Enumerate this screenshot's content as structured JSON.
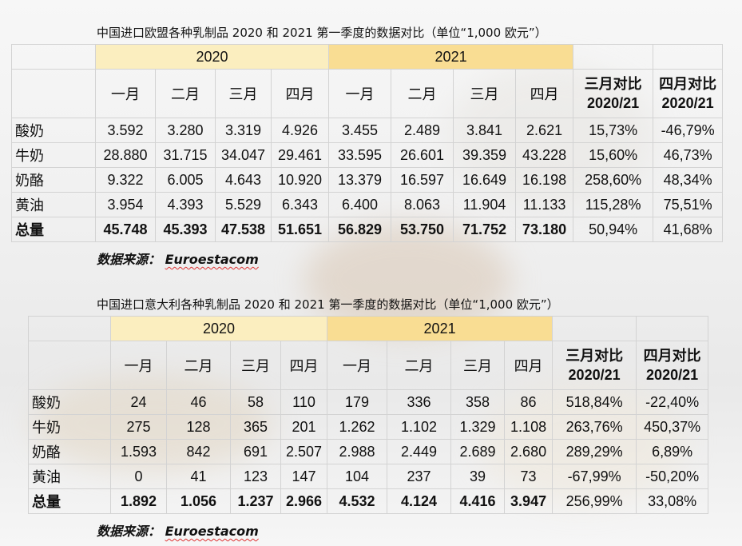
{
  "tables": [
    {
      "title": "中国进口欧盟各种乳制品 2020 和 2021 第一季度的数据对比（单位“1,000 欧元”）",
      "year_a": "2020",
      "year_b": "2021",
      "months_a": [
        "一月",
        "二月",
        "三月",
        "四月"
      ],
      "months_b": [
        "一月",
        "二月",
        "三月",
        "四月"
      ],
      "cmp1": [
        "三月对比",
        "2020/21"
      ],
      "cmp2": [
        "四月对比",
        "2020/21"
      ],
      "rows": [
        {
          "label": "酸奶",
          "cells": [
            "3.592",
            "3.280",
            "3.319",
            "4.926",
            "3.455",
            "2.489",
            "3.841",
            "2.621",
            "15,73%",
            "-46,79%"
          ]
        },
        {
          "label": "牛奶",
          "cells": [
            "28.880",
            "31.715",
            "34.047",
            "29.461",
            "33.595",
            "26.601",
            "39.359",
            "43.228",
            "15,60%",
            "46,73%"
          ]
        },
        {
          "label": "奶酪",
          "cells": [
            "9.322",
            "6.005",
            "4.643",
            "10.920",
            "13.379",
            "16.597",
            "16.649",
            "16.198",
            "258,60%",
            "48,34%"
          ]
        },
        {
          "label": "黄油",
          "cells": [
            "3.954",
            "4.393",
            "5.529",
            "6.343",
            "6.400",
            "8.063",
            "11.904",
            "11.133",
            "115,28%",
            "75,51%"
          ]
        },
        {
          "label": "总量",
          "cells": [
            "45.748",
            "45.393",
            "47.538",
            "51.651",
            "56.829",
            "53.750",
            "71.752",
            "73.180",
            "50,94%",
            "41,68%"
          ]
        }
      ],
      "source_prefix": "数据来源：",
      "source_name": "Euroestacom"
    },
    {
      "title": "中国进口意大利各种乳制品 2020 和 2021 第一季度的数据对比（单位“1,000 欧元”）",
      "year_a": "2020",
      "year_b": "2021",
      "months_a": [
        "一月",
        "二月",
        "三月",
        "四月"
      ],
      "months_b": [
        "一月",
        "二月",
        "三月",
        "四月"
      ],
      "cmp1": [
        "三月对比",
        "2020/21"
      ],
      "cmp2": [
        "四月对比",
        "2020/21"
      ],
      "rows": [
        {
          "label": "酸奶",
          "cells": [
            "24",
            "46",
            "58",
            "110",
            "179",
            "336",
            "358",
            "86",
            "518,84%",
            "-22,40%"
          ]
        },
        {
          "label": "牛奶",
          "cells": [
            "275",
            "128",
            "365",
            "201",
            "1.262",
            "1.102",
            "1.329",
            "1.108",
            "263,76%",
            "450,37%"
          ]
        },
        {
          "label": "奶酪",
          "cells": [
            "1.593",
            "842",
            "691",
            "2.507",
            "2.988",
            "2.449",
            "2.689",
            "2.680",
            "289,29%",
            "6,89%"
          ]
        },
        {
          "label": "黄油",
          "cells": [
            "0",
            "41",
            "123",
            "147",
            "104",
            "237",
            "39",
            "73",
            "-67,99%",
            "-50,20%"
          ]
        },
        {
          "label": "总量",
          "cells": [
            "1.892",
            "1.056",
            "1.237",
            "2.966",
            "4.532",
            "4.124",
            "4.416",
            "3.947",
            "256,99%",
            "33,08%"
          ]
        }
      ],
      "source_prefix": "数据来源：",
      "source_name": "Euroestacom"
    }
  ]
}
